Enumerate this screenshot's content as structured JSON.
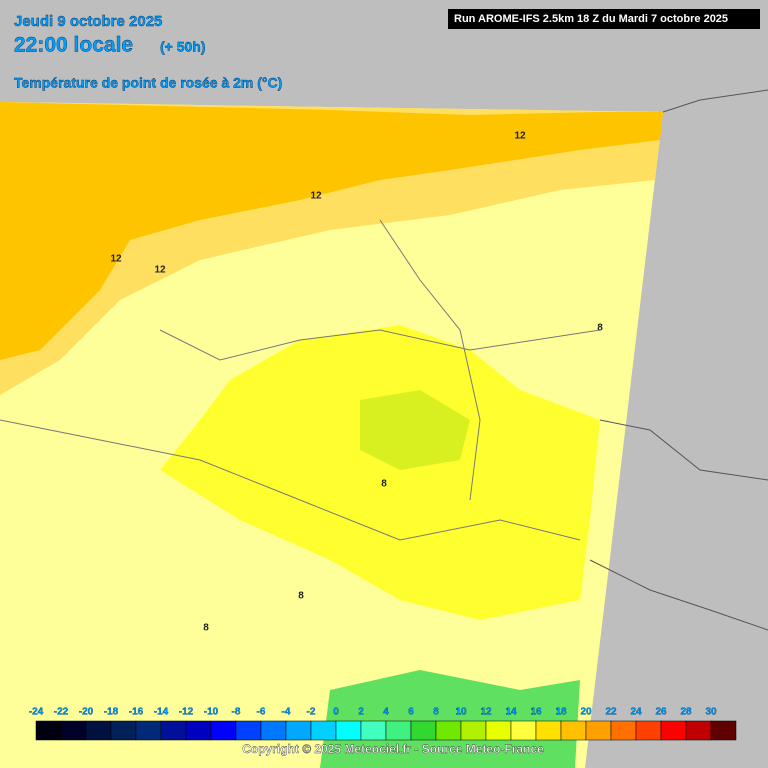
{
  "header": {
    "date": "Jeudi 9 octobre 2025",
    "time": "22:00 locale",
    "lead": "(+ 50h)",
    "variable": "Température de point de rosée à 2m (°C)",
    "run": "Run AROME-IFS 2.5km 18 Z du Mardi 7 octobre 2025"
  },
  "contour_labels": [
    12,
    12,
    12,
    12,
    8,
    8,
    8,
    8
  ],
  "legend": {
    "labels": [
      -24,
      -22,
      -20,
      -18,
      -16,
      -14,
      -12,
      -10,
      -8,
      -6,
      -4,
      -2,
      0,
      2,
      4,
      6,
      8,
      10,
      12,
      14,
      16,
      18,
      20,
      22,
      24,
      26,
      28,
      30
    ],
    "colors": [
      "#000010",
      "#000028",
      "#001040",
      "#00205a",
      "#002a78",
      "#001098",
      "#0000c0",
      "#0000ff",
      "#0040ff",
      "#0078ff",
      "#00a8ff",
      "#00d0ff",
      "#00ffff",
      "#40ffc0",
      "#40f080",
      "#30d830",
      "#70e800",
      "#b0f000",
      "#e8ff00",
      "#ffff40",
      "#ffe000",
      "#ffc000",
      "#ffa000",
      "#ff7000",
      "#ff4000",
      "#ff0000",
      "#c00000",
      "#600000"
    ]
  },
  "copyright": "Copyright © 2025 Meteociel.fr - Source Meteo-France"
}
